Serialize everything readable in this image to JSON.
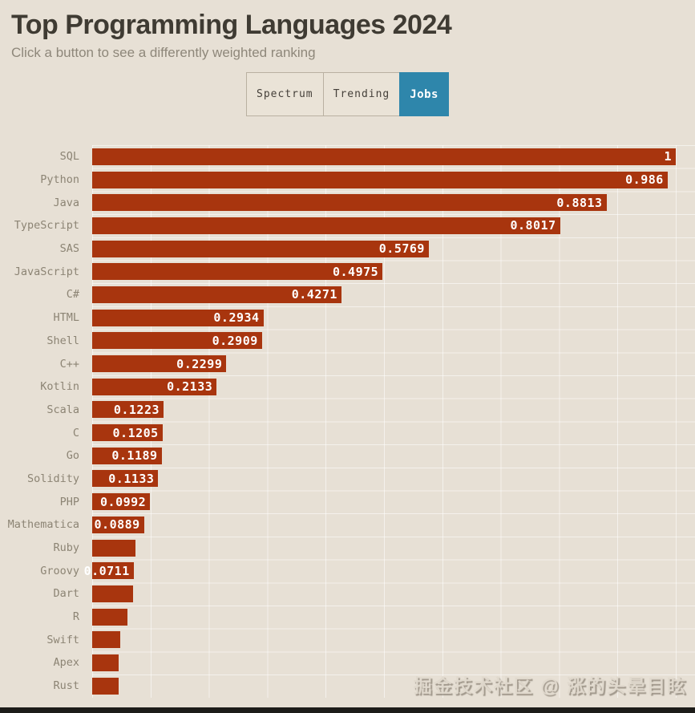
{
  "page": {
    "title": "Top Programming Languages 2024",
    "subtitle": "Click a button to see a differently weighted ranking",
    "watermark": "掘金技术社区 @ 涨的头晕目眩"
  },
  "buttons": [
    {
      "label": "Spectrum",
      "active": false
    },
    {
      "label": "Trending",
      "active": false
    },
    {
      "label": "Jobs",
      "active": true
    }
  ],
  "colors": {
    "background": "#e7e0d5",
    "bar": "#a8350e",
    "active_button": "#2e86ab",
    "title_text": "#3f3b33",
    "subtitle_text": "#8e877a",
    "category_text": "#8c8474",
    "value_text": "#ffffff",
    "gridline": "rgba(255,255,255,0.55)",
    "bottom_bar": "#1d1c19"
  },
  "chart_data": {
    "type": "bar",
    "orientation": "horizontal",
    "title": "Top Programming Languages 2024",
    "xlabel": "",
    "ylabel": "",
    "xlim": [
      0,
      1
    ],
    "grid": true,
    "gridline_interval": 0.1,
    "legend": "none",
    "categories": [
      "SQL",
      "Python",
      "Java",
      "TypeScript",
      "SAS",
      "JavaScript",
      "C#",
      "HTML",
      "Shell",
      "C++",
      "Kotlin",
      "Scala",
      "C",
      "Go",
      "Solidity",
      "PHP",
      "Mathematica",
      "Ruby",
      "Groovy",
      "Dart",
      "R",
      "Swift",
      "Apex",
      "Rust"
    ],
    "values": [
      1,
      0.986,
      0.8813,
      0.8017,
      0.5769,
      0.4975,
      0.4271,
      0.2934,
      0.2909,
      0.2299,
      0.2133,
      0.1223,
      0.1205,
      0.1189,
      0.1133,
      0.0992,
      0.0889,
      0.074,
      0.0711,
      0.0705,
      0.06,
      0.048,
      0.046,
      0.045
    ],
    "value_labels": [
      "1",
      "0.986",
      "0.8813",
      "0.8017",
      "0.5769",
      "0.4975",
      "0.4271",
      "0.2934",
      "0.2909",
      "0.2299",
      "0.2133",
      "0.1223",
      "0.1205",
      "0.1189",
      "0.1133",
      "0.0992",
      "0.0889",
      "",
      "0.0711",
      "",
      "",
      "",
      "",
      ""
    ]
  }
}
